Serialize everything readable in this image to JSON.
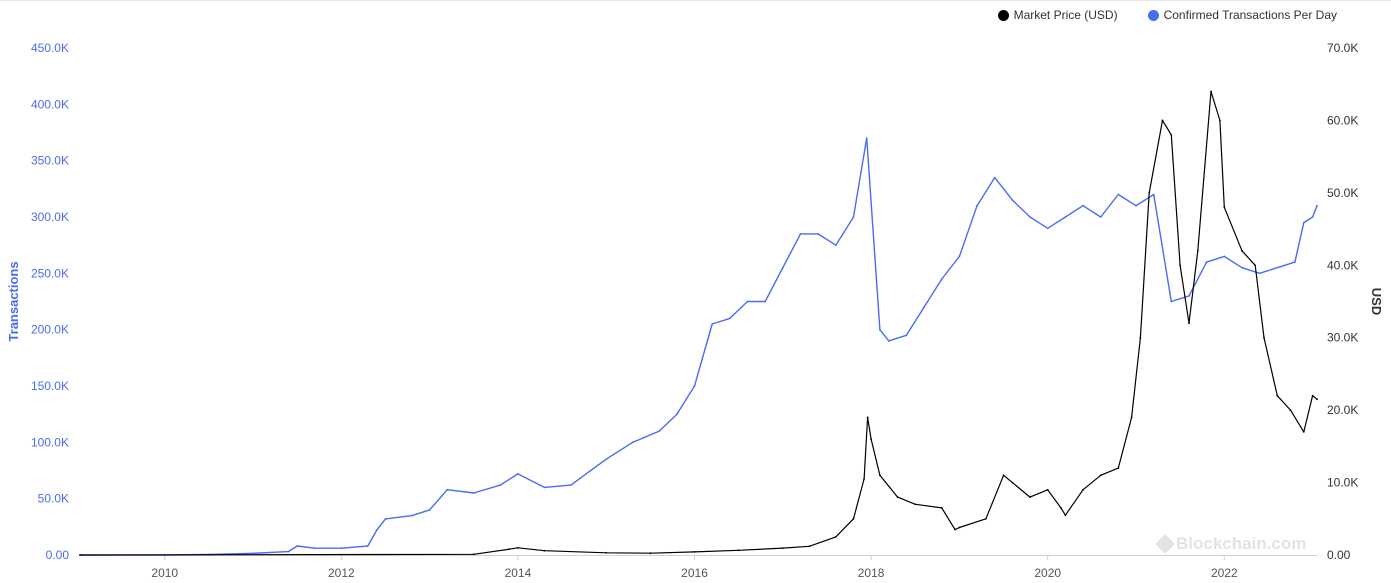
{
  "legend": [
    {
      "label": "Market Price (USD)",
      "color": "#000000"
    },
    {
      "label": "Confirmed Transactions Per Day",
      "color": "#4a6cf0"
    }
  ],
  "watermark": "Blockchain.com",
  "chart_data": {
    "type": "line",
    "y_left_label": "Transactions",
    "y_right_label": "USD",
    "x_ticks": [
      "2010",
      "2012",
      "2014",
      "2016",
      "2018",
      "2020",
      "2022"
    ],
    "y_left_ticks": [
      "0.00",
      "50.0K",
      "100.0K",
      "150.0K",
      "200.0K",
      "250.0K",
      "300.0K",
      "350.0K",
      "400.0K",
      "450.0K"
    ],
    "y_right_ticks": [
      "0.00",
      "10.0K",
      "20.0K",
      "30.0K",
      "40.0K",
      "50.0K",
      "60.0K",
      "70.0K"
    ],
    "x_range": [
      2009.04,
      2023.05
    ],
    "y_left_range": [
      0,
      450000
    ],
    "y_right_range": [
      0,
      70000
    ],
    "grid": false,
    "legend_position": "top-right",
    "series": [
      {
        "name": "Confirmed Transactions Per Day",
        "axis": "left",
        "color": "#4a6cf0",
        "x": [
          2009.04,
          2010.0,
          2010.5,
          2011.0,
          2011.4,
          2011.5,
          2011.7,
          2012.0,
          2012.3,
          2012.4,
          2012.5,
          2012.8,
          2013.0,
          2013.2,
          2013.5,
          2013.8,
          2014.0,
          2014.3,
          2014.6,
          2015.0,
          2015.3,
          2015.6,
          2015.8,
          2016.0,
          2016.2,
          2016.4,
          2016.6,
          2016.8,
          2017.0,
          2017.2,
          2017.4,
          2017.6,
          2017.8,
          2017.95,
          2018.1,
          2018.2,
          2018.4,
          2018.6,
          2018.8,
          2019.0,
          2019.2,
          2019.4,
          2019.6,
          2019.8,
          2020.0,
          2020.2,
          2020.4,
          2020.6,
          2020.8,
          2021.0,
          2021.2,
          2021.4,
          2021.6,
          2021.8,
          2022.0,
          2022.2,
          2022.4,
          2022.6,
          2022.8,
          2022.9,
          2023.0,
          2023.05
        ],
        "y": [
          0,
          0,
          400,
          1500,
          3000,
          8000,
          6000,
          6000,
          8000,
          22000,
          32000,
          35000,
          40000,
          58000,
          55000,
          62000,
          72000,
          60000,
          62000,
          85000,
          100000,
          110000,
          125000,
          150000,
          205000,
          210000,
          225000,
          225000,
          255000,
          285000,
          285000,
          275000,
          300000,
          370000,
          200000,
          190000,
          195000,
          220000,
          245000,
          265000,
          310000,
          335000,
          315000,
          300000,
          290000,
          300000,
          310000,
          300000,
          320000,
          310000,
          320000,
          225000,
          230000,
          260000,
          265000,
          255000,
          250000,
          255000,
          260000,
          295000,
          300000,
          310000
        ]
      },
      {
        "name": "Market Price (USD)",
        "axis": "right",
        "color": "#000000",
        "x": [
          2009.04,
          2013.5,
          2013.9,
          2014.0,
          2014.3,
          2015.0,
          2015.5,
          2016.0,
          2016.5,
          2017.0,
          2017.3,
          2017.6,
          2017.8,
          2017.92,
          2017.96,
          2018.0,
          2018.1,
          2018.3,
          2018.5,
          2018.8,
          2018.95,
          2019.0,
          2019.3,
          2019.5,
          2019.6,
          2019.8,
          2020.0,
          2020.15,
          2020.2,
          2020.4,
          2020.6,
          2020.8,
          2020.95,
          2021.05,
          2021.15,
          2021.3,
          2021.4,
          2021.5,
          2021.6,
          2021.7,
          2021.85,
          2021.95,
          2022.0,
          2022.2,
          2022.35,
          2022.45,
          2022.6,
          2022.75,
          2022.9,
          2023.0,
          2023.05
        ],
        "y": [
          0,
          100,
          800,
          1000,
          600,
          300,
          250,
          430,
          650,
          950,
          1200,
          2500,
          5000,
          10500,
          19000,
          16000,
          11000,
          8000,
          7000,
          6500,
          3500,
          3800,
          5000,
          11000,
          10000,
          8000,
          9000,
          6500,
          5500,
          9000,
          11000,
          12000,
          19000,
          30000,
          50000,
          60000,
          58000,
          40000,
          32000,
          42000,
          64000,
          60000,
          48000,
          42000,
          40000,
          30000,
          22000,
          20000,
          17000,
          22000,
          21500
        ]
      }
    ]
  }
}
